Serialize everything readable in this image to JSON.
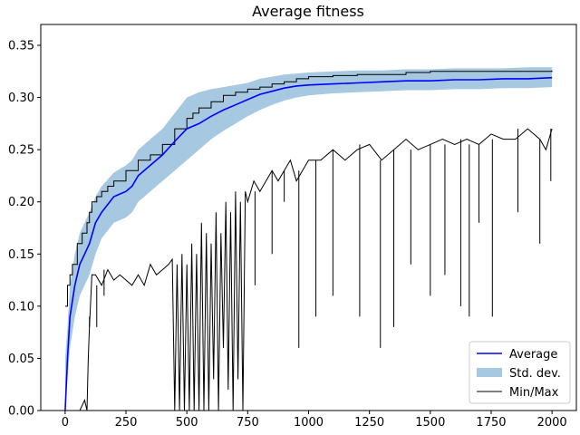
{
  "chart_data": {
    "type": "line",
    "title": "Average fitness",
    "xlabel": "",
    "ylabel": "",
    "xlim": [
      -100,
      2100
    ],
    "ylim": [
      0.0,
      0.37
    ],
    "x_ticks": [
      0,
      250,
      500,
      750,
      1000,
      1250,
      1500,
      1750,
      2000
    ],
    "x_tick_labels": [
      "0",
      "250",
      "500",
      "750",
      "1000",
      "1250",
      "1500",
      "1750",
      "2000"
    ],
    "y_ticks": [
      0.0,
      0.05,
      0.1,
      0.15,
      0.2,
      0.25,
      0.3,
      0.35
    ],
    "y_tick_labels": [
      "0.00",
      "0.05",
      "0.10",
      "0.15",
      "0.20",
      "0.25",
      "0.30",
      "0.35"
    ],
    "grid": false,
    "legend_position": "lower-right",
    "colors": {
      "average": "#0000ff",
      "std_fill": "#a6c8e0",
      "minmax": "#000000"
    },
    "series": [
      {
        "name": "Average",
        "kind": "line",
        "x": [
          0,
          10,
          20,
          40,
          60,
          80,
          100,
          125,
          150,
          200,
          250,
          275,
          300,
          350,
          400,
          450,
          500,
          550,
          600,
          650,
          700,
          750,
          800,
          850,
          900,
          950,
          1000,
          1100,
          1200,
          1300,
          1400,
          1500,
          1600,
          1700,
          1800,
          1900,
          2000
        ],
        "values": [
          0.0,
          0.05,
          0.09,
          0.12,
          0.14,
          0.15,
          0.16,
          0.18,
          0.19,
          0.205,
          0.21,
          0.215,
          0.225,
          0.235,
          0.245,
          0.258,
          0.27,
          0.275,
          0.282,
          0.288,
          0.293,
          0.298,
          0.303,
          0.306,
          0.309,
          0.311,
          0.312,
          0.313,
          0.314,
          0.315,
          0.316,
          0.316,
          0.317,
          0.317,
          0.318,
          0.318,
          0.319
        ]
      },
      {
        "name": "Std. dev.",
        "kind": "band",
        "x": [
          0,
          10,
          20,
          40,
          60,
          80,
          100,
          125,
          150,
          200,
          250,
          275,
          300,
          350,
          400,
          450,
          500,
          550,
          600,
          650,
          700,
          750,
          800,
          850,
          900,
          950,
          1000,
          1100,
          1200,
          1300,
          1400,
          1500,
          1600,
          1700,
          1800,
          1900,
          2000
        ],
        "lower": [
          0.0,
          0.03,
          0.06,
          0.09,
          0.11,
          0.12,
          0.13,
          0.15,
          0.165,
          0.18,
          0.185,
          0.19,
          0.2,
          0.21,
          0.22,
          0.23,
          0.24,
          0.25,
          0.26,
          0.268,
          0.275,
          0.282,
          0.288,
          0.293,
          0.297,
          0.3,
          0.302,
          0.304,
          0.305,
          0.306,
          0.307,
          0.307,
          0.308,
          0.308,
          0.309,
          0.309,
          0.31
        ],
        "upper": [
          0.05,
          0.08,
          0.12,
          0.15,
          0.17,
          0.18,
          0.19,
          0.205,
          0.215,
          0.228,
          0.235,
          0.24,
          0.25,
          0.26,
          0.27,
          0.285,
          0.3,
          0.305,
          0.308,
          0.31,
          0.312,
          0.314,
          0.318,
          0.32,
          0.322,
          0.323,
          0.324,
          0.325,
          0.326,
          0.326,
          0.327,
          0.327,
          0.328,
          0.328,
          0.328,
          0.329,
          0.329
        ]
      },
      {
        "name": "Min/Max",
        "kind": "max-line",
        "x": [
          0,
          10,
          20,
          30,
          50,
          70,
          90,
          100,
          110,
          130,
          150,
          175,
          200,
          250,
          300,
          350,
          400,
          450,
          500,
          525,
          550,
          600,
          650,
          700,
          750,
          800,
          850,
          900,
          950,
          1000,
          1100,
          1200,
          1300,
          1400,
          1500,
          1600,
          1700,
          1800,
          1900,
          2000
        ],
        "values": [
          0.1,
          0.12,
          0.13,
          0.14,
          0.16,
          0.17,
          0.18,
          0.19,
          0.2,
          0.205,
          0.21,
          0.215,
          0.22,
          0.23,
          0.24,
          0.245,
          0.255,
          0.27,
          0.28,
          0.285,
          0.29,
          0.296,
          0.302,
          0.305,
          0.308,
          0.31,
          0.313,
          0.315,
          0.318,
          0.32,
          0.321,
          0.322,
          0.322,
          0.324,
          0.325,
          0.325,
          0.325,
          0.325,
          0.325,
          0.326
        ]
      },
      {
        "name": "Min/Max",
        "kind": "min-line",
        "x": [
          0,
          20,
          40,
          60,
          80,
          90,
          95,
          100,
          110,
          125,
          150,
          175,
          200,
          225,
          250,
          275,
          300,
          325,
          350,
          375,
          400,
          425,
          440,
          450,
          460,
          470,
          480,
          490,
          500,
          510,
          520,
          530,
          540,
          550,
          560,
          570,
          580,
          590,
          600,
          610,
          620,
          630,
          640,
          650,
          660,
          670,
          680,
          690,
          700,
          710,
          720,
          730,
          740,
          750,
          775,
          800,
          825,
          850,
          875,
          900,
          925,
          950,
          975,
          1000,
          1050,
          1100,
          1150,
          1200,
          1250,
          1300,
          1350,
          1400,
          1450,
          1500,
          1550,
          1600,
          1650,
          1700,
          1750,
          1800,
          1850,
          1900,
          1950,
          1975,
          2000
        ],
        "values": [
          0.0,
          0.0,
          0.0,
          0.0,
          0.01,
          0.0,
          0.05,
          0.08,
          0.13,
          0.13,
          0.12,
          0.135,
          0.125,
          0.13,
          0.125,
          0.12,
          0.13,
          0.12,
          0.14,
          0.13,
          0.135,
          0.14,
          0.145,
          0.0,
          0.14,
          0.0,
          0.15,
          0.0,
          0.14,
          0.0,
          0.16,
          0.0,
          0.15,
          0.0,
          0.18,
          0.0,
          0.17,
          0.0,
          0.16,
          0.03,
          0.19,
          0.0,
          0.17,
          0.06,
          0.2,
          0.02,
          0.19,
          0.0,
          0.21,
          0.03,
          0.2,
          0.0,
          0.21,
          0.2,
          0.22,
          0.21,
          0.22,
          0.23,
          0.22,
          0.23,
          0.24,
          0.22,
          0.23,
          0.24,
          0.24,
          0.25,
          0.24,
          0.25,
          0.255,
          0.24,
          0.25,
          0.26,
          0.25,
          0.255,
          0.26,
          0.255,
          0.26,
          0.255,
          0.265,
          0.26,
          0.26,
          0.27,
          0.26,
          0.25,
          0.27
        ]
      }
    ],
    "min_spikes": [
      {
        "x": 100,
        "y": 0.09
      },
      {
        "x": 130,
        "y": 0.08
      },
      {
        "x": 160,
        "y": 0.11
      },
      {
        "x": 780,
        "y": 0.12
      },
      {
        "x": 850,
        "y": 0.15
      },
      {
        "x": 900,
        "y": 0.2
      },
      {
        "x": 960,
        "y": 0.06
      },
      {
        "x": 1030,
        "y": 0.09
      },
      {
        "x": 1100,
        "y": 0.11
      },
      {
        "x": 1210,
        "y": 0.09
      },
      {
        "x": 1295,
        "y": 0.06
      },
      {
        "x": 1350,
        "y": 0.08
      },
      {
        "x": 1420,
        "y": 0.14
      },
      {
        "x": 1500,
        "y": 0.11
      },
      {
        "x": 1560,
        "y": 0.13
      },
      {
        "x": 1625,
        "y": 0.1
      },
      {
        "x": 1660,
        "y": 0.09
      },
      {
        "x": 1700,
        "y": 0.18
      },
      {
        "x": 1755,
        "y": 0.09
      },
      {
        "x": 1860,
        "y": 0.19
      },
      {
        "x": 1950,
        "y": 0.16
      },
      {
        "x": 1995,
        "y": 0.22
      }
    ],
    "legend": [
      {
        "label": "Average",
        "marker": "line",
        "color": "#0000ff"
      },
      {
        "label": "Std. dev.",
        "marker": "patch",
        "color": "#a6c8e0"
      },
      {
        "label": "Min/Max",
        "marker": "line",
        "color": "#000000"
      }
    ]
  }
}
